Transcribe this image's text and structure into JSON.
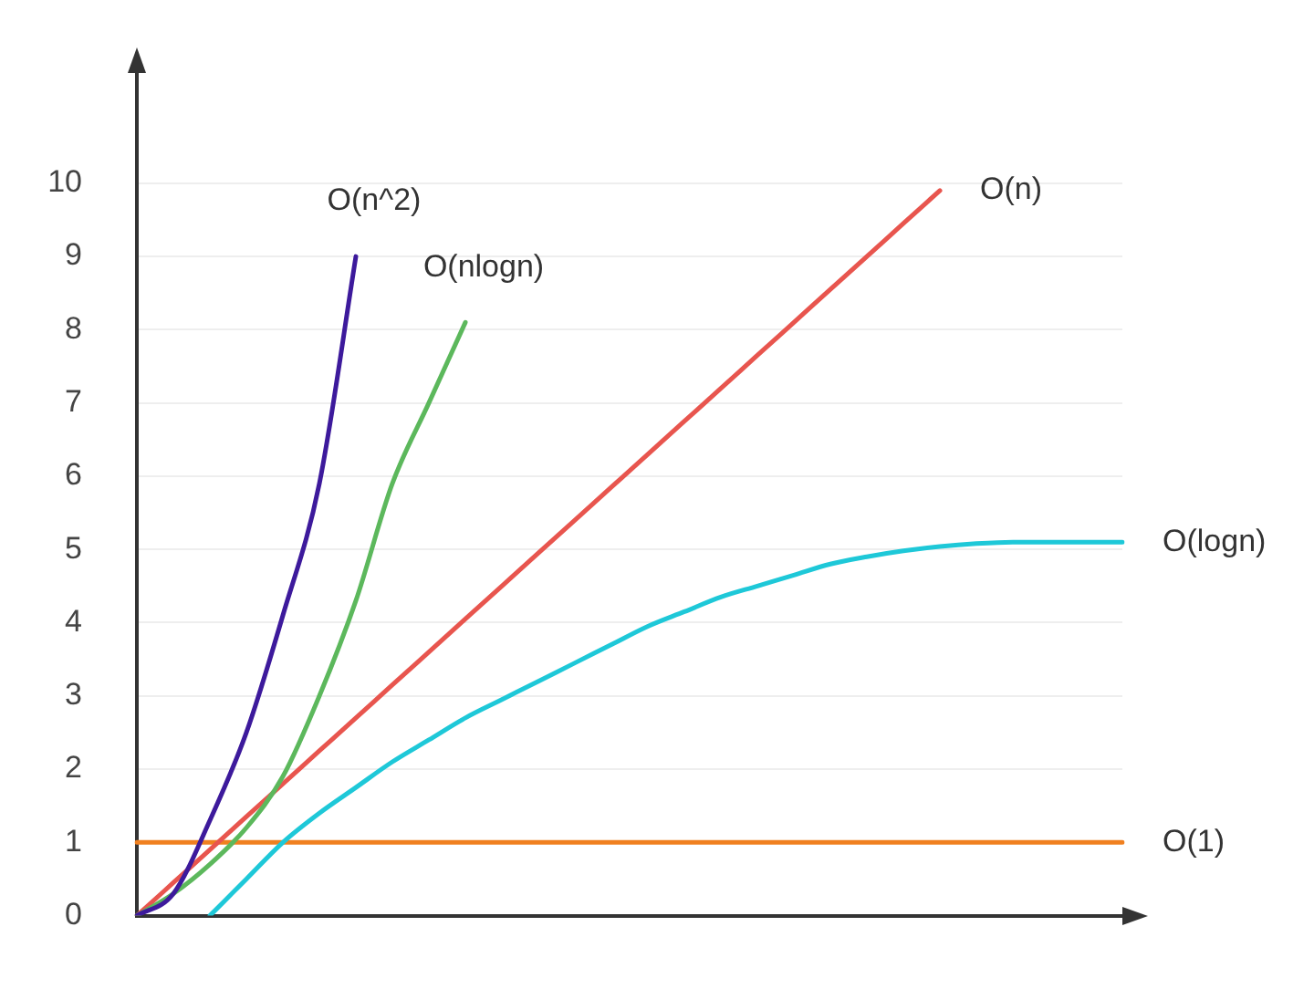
{
  "chart_data": {
    "type": "line",
    "categories": [
      null,
      null,
      null,
      null,
      null,
      null,
      null,
      null,
      null,
      null,
      null,
      null,
      null,
      null,
      null,
      null,
      null,
      null,
      null,
      null,
      null,
      null,
      null,
      null,
      null,
      null,
      null,
      null
    ],
    "series": [
      {
        "name": "O(n^2)",
        "color": "#3d1a9c",
        "values": [
          0,
          0.3,
          1.3,
          2.5,
          4.1,
          5.9,
          9,
          null,
          null,
          null,
          null,
          null,
          null,
          null,
          null,
          null,
          null,
          null,
          null,
          null,
          null,
          null,
          null,
          null,
          null,
          null,
          null,
          null
        ]
      },
      {
        "name": "O(nlogn)",
        "color": "#5cb85c",
        "values": [
          0,
          0.3,
          0.7,
          1.2,
          1.9,
          3,
          4.3,
          5.9,
          7,
          8.1,
          null,
          null,
          null,
          null,
          null,
          null,
          null,
          null,
          null,
          null,
          null,
          null,
          null,
          null,
          null,
          null,
          null,
          null
        ]
      },
      {
        "name": "O(n)",
        "color": "#e8554e",
        "values": [
          0,
          0.45,
          0.9,
          1.35,
          1.8,
          2.25,
          2.7,
          3.15,
          3.6,
          4.05,
          4.5,
          4.95,
          5.4,
          5.85,
          6.3,
          6.75,
          7.2,
          7.65,
          8.1,
          8.55,
          9,
          9.45,
          9.9,
          null,
          null,
          null,
          null,
          null
        ]
      },
      {
        "name": "O(logn)",
        "color": "#1ec8d8",
        "values": [
          null,
          null,
          0,
          0.5,
          1,
          1.4,
          1.75,
          2.1,
          2.4,
          2.7,
          2.95,
          3.2,
          3.45,
          3.7,
          3.95,
          4.15,
          4.35,
          4.5,
          4.65,
          4.8,
          4.9,
          4.98,
          5.04,
          5.08,
          5.1,
          5.1,
          5.1,
          5.1
        ]
      },
      {
        "name": "O(1)",
        "color": "#f08020",
        "values": [
          1,
          1,
          1,
          1,
          1,
          1,
          1,
          1,
          1,
          1,
          1,
          1,
          1,
          1,
          1,
          1,
          1,
          1,
          1,
          1,
          1,
          1,
          1,
          1,
          1,
          1,
          1,
          1
        ]
      }
    ],
    "ylim": [
      0,
      11.5
    ],
    "yticks": [
      0,
      1,
      2,
      3,
      4,
      5,
      6,
      7,
      8,
      9,
      10
    ],
    "grid": "y",
    "legend": false,
    "tick_labels": "y",
    "marker": "none",
    "line_style": "solid"
  }
}
